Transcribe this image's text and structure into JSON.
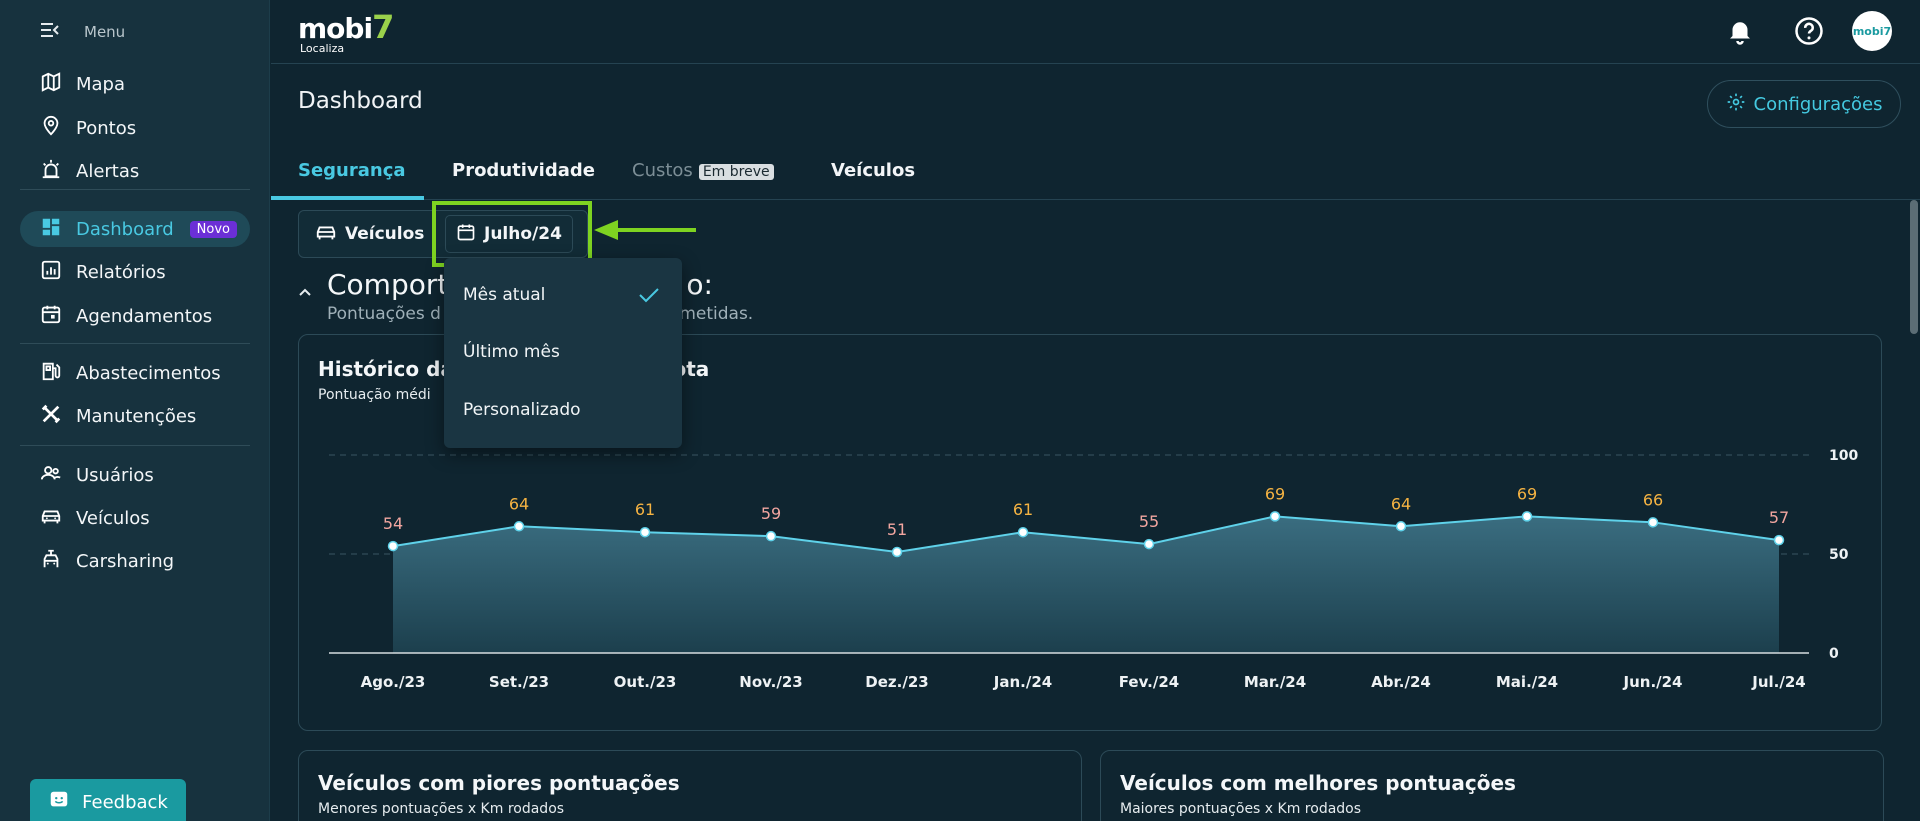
{
  "sidebar": {
    "menu_label": "Menu",
    "items": [
      {
        "label": "Mapa",
        "icon": "map-icon"
      },
      {
        "label": "Pontos",
        "icon": "pin-icon"
      },
      {
        "label": "Alertas",
        "icon": "siren-icon"
      },
      {
        "label": "Dashboard",
        "icon": "dashboard-icon",
        "badge": "Novo",
        "active": true
      },
      {
        "label": "Relatórios",
        "icon": "report-icon"
      },
      {
        "label": "Agendamentos",
        "icon": "calendar-icon"
      },
      {
        "label": "Abastecimentos",
        "icon": "fuel-icon"
      },
      {
        "label": "Manutenções",
        "icon": "tools-icon"
      },
      {
        "label": "Usuários",
        "icon": "users-icon"
      },
      {
        "label": "Veículos",
        "icon": "car-icon"
      },
      {
        "label": "Carsharing",
        "icon": "carsharing-icon"
      }
    ],
    "feedback_label": "Feedback"
  },
  "header": {
    "logo_text": "mobi",
    "logo_accent": "7",
    "logo_sub": "Localiza",
    "avatar_text": "mobi7"
  },
  "page": {
    "title": "Dashboard",
    "config_label": "Configurações"
  },
  "tabs": [
    {
      "label": "Segurança",
      "active": true
    },
    {
      "label": "Produtividade"
    },
    {
      "label": "Custos",
      "badge": "Em breve",
      "disabled": true
    },
    {
      "label": "Veículos"
    }
  ],
  "filters": {
    "vehicles_label": "Veículos",
    "period_label": "Julho/24"
  },
  "dropdown": {
    "options": [
      "Mês atual",
      "Último mês",
      "Personalizado"
    ],
    "selected": "Mês atual"
  },
  "section": {
    "title": "Comport",
    "title_tail": "o:",
    "subtitle": "Pontuações d",
    "subtitle_tail": "ometidas."
  },
  "history_card": {
    "title": "Histórico da",
    "title_tail": "frota",
    "subtitle": "Pontuação médi"
  },
  "worst_card": {
    "title": "Veículos com piores pontuações",
    "subtitle": "Menores pontuações x Km rodados"
  },
  "best_card": {
    "title": "Veículos com melhores pontuações",
    "subtitle": "Maiores pontuações x Km rodados"
  },
  "colors": {
    "accent": "#49c9e2",
    "low_score": "#f2a6a0",
    "high_score": "#f5b342",
    "highlight": "#7ed321"
  },
  "chart_data": {
    "type": "area",
    "categories": [
      "Ago./23",
      "Set./23",
      "Out./23",
      "Nov./23",
      "Dez./23",
      "Jan./24",
      "Fev./24",
      "Mar./24",
      "Abr./24",
      "Mai./24",
      "Jun./24",
      "Jul./24"
    ],
    "values": [
      54,
      64,
      61,
      59,
      51,
      61,
      55,
      69,
      64,
      69,
      66,
      57
    ],
    "label_color_groups": [
      "low",
      "high",
      "high",
      "low",
      "low",
      "high",
      "low",
      "high",
      "high",
      "high",
      "high",
      "low"
    ],
    "ylim": [
      0,
      100
    ],
    "yticks": [
      "0",
      "50",
      "100"
    ],
    "grid": true,
    "legend": "none"
  }
}
